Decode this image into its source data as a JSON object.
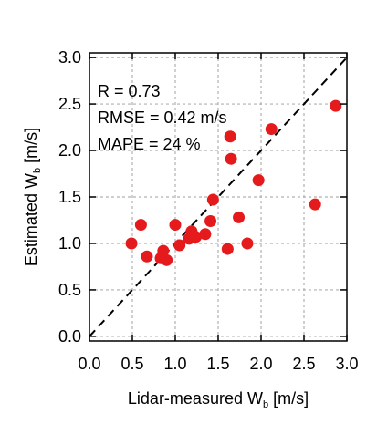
{
  "chart_data": {
    "type": "scatter",
    "xlabel": "Lidar-measured W",
    "xlabel_sub": "b",
    "xlabel_unit": " [m/s]",
    "ylabel": "Estimated W",
    "ylabel_sub": "b",
    "ylabel_unit": " [m/s]",
    "xlim": [
      0,
      3.0
    ],
    "ylim": [
      -0.05,
      3.05
    ],
    "xticks": [
      0.0,
      0.5,
      1.0,
      1.5,
      2.0,
      2.5,
      3.0
    ],
    "yticks": [
      0.0,
      0.5,
      1.0,
      1.5,
      2.0,
      2.5,
      3.0
    ],
    "xtick_labels": [
      "0.0",
      "0.5",
      "1.0",
      "1.5",
      "2.0",
      "2.5",
      "3.0"
    ],
    "ytick_labels": [
      "0.0",
      "0.5",
      "1.0",
      "1.5",
      "2.0",
      "2.5",
      "3.0"
    ],
    "grid": true,
    "reference_line": "1:1 dashed",
    "annotations": [
      "R = 0.73",
      "RMSE = 0.42 m/s",
      "MAPE = 24 %"
    ],
    "colors": {
      "marker": "#e41a1c",
      "grid": "#b0b0b0",
      "axis": "#000000",
      "reference_line": "#000000"
    },
    "points": [
      {
        "x": 0.49,
        "y": 1.0
      },
      {
        "x": 0.6,
        "y": 1.2
      },
      {
        "x": 0.67,
        "y": 0.86
      },
      {
        "x": 0.83,
        "y": 0.84
      },
      {
        "x": 0.86,
        "y": 0.92
      },
      {
        "x": 0.9,
        "y": 0.82
      },
      {
        "x": 1.0,
        "y": 1.2
      },
      {
        "x": 1.05,
        "y": 0.98
      },
      {
        "x": 1.16,
        "y": 1.05
      },
      {
        "x": 1.19,
        "y": 1.13
      },
      {
        "x": 1.24,
        "y": 1.07
      },
      {
        "x": 1.35,
        "y": 1.1
      },
      {
        "x": 1.41,
        "y": 1.24
      },
      {
        "x": 1.44,
        "y": 1.47
      },
      {
        "x": 1.61,
        "y": 0.94
      },
      {
        "x": 1.64,
        "y": 2.15
      },
      {
        "x": 1.65,
        "y": 1.91
      },
      {
        "x": 1.74,
        "y": 1.28
      },
      {
        "x": 1.84,
        "y": 1.0
      },
      {
        "x": 1.97,
        "y": 1.68
      },
      {
        "x": 2.12,
        "y": 2.23
      },
      {
        "x": 2.63,
        "y": 1.42
      },
      {
        "x": 2.87,
        "y": 2.48
      }
    ]
  }
}
